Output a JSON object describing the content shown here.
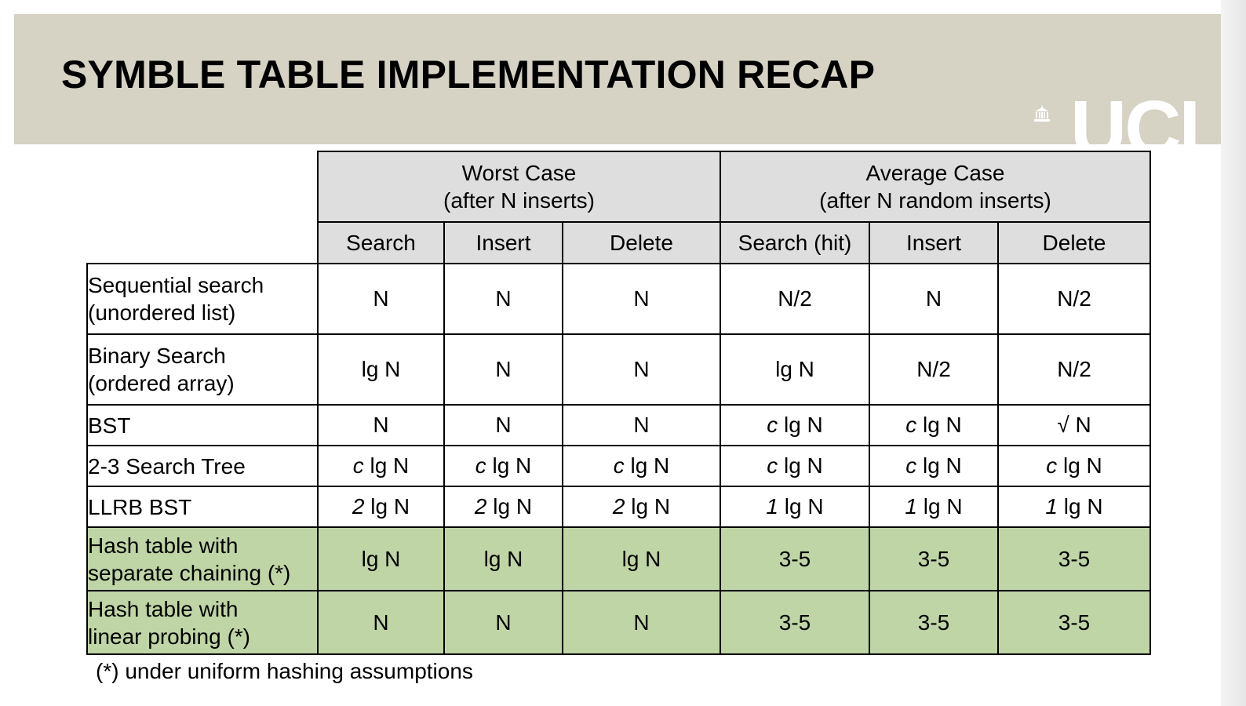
{
  "slide": {
    "title": "SYMBLE TABLE IMPLEMENTATION RECAP",
    "logo_text": "UCL",
    "logo_icon": "ucl-portico-icon"
  },
  "table": {
    "groups": [
      {
        "line1": "Worst Case",
        "line2": "(after N inserts)"
      },
      {
        "line1": "Average Case",
        "line2": "(after N random inserts)"
      }
    ],
    "columns": [
      "Search",
      "Insert",
      "Delete",
      "Search (hit)",
      "Insert",
      "Delete"
    ],
    "rows": [
      {
        "label1": "Sequential search",
        "label2": "(unordered list)",
        "cells": [
          "N",
          "N",
          "N",
          "N/2",
          "N",
          "N/2"
        ],
        "highlight": false
      },
      {
        "label1": "Binary Search",
        "label2": "(ordered array)",
        "cells": [
          "lg N",
          "N",
          "N",
          "lg N",
          "N/2",
          "N/2"
        ],
        "highlight": false
      },
      {
        "label1": "BST",
        "label2": "",
        "cells": [
          "N",
          "N",
          "N",
          "c lg N",
          "c lg N",
          "√ N"
        ],
        "highlight": false
      },
      {
        "label1": "2-3 Search Tree",
        "label2": "",
        "cells": [
          "c lg N",
          "c lg N",
          "c lg N",
          "c lg N",
          "c lg N",
          "c lg N"
        ],
        "highlight": false
      },
      {
        "label1": "LLRB BST",
        "label2": "",
        "cells": [
          "2 lg N",
          "2 lg N",
          "2 lg N",
          "1 lg N",
          "1 lg N",
          "1 lg N"
        ],
        "highlight": false
      },
      {
        "label1": "Hash table with",
        "label2": "separate chaining (*)",
        "cells": [
          "lg N",
          "lg N",
          "lg N",
          "3-5",
          "3-5",
          "3-5"
        ],
        "highlight": true
      },
      {
        "label1": "Hash table with",
        "label2": "linear probing (*)",
        "cells": [
          "N",
          "N",
          "N",
          "3-5",
          "3-5",
          "3-5"
        ],
        "highlight": true
      }
    ],
    "highlight_color": "#bfd5a5",
    "header_color": "#dedede"
  },
  "footnote": "(*) under uniform hashing assumptions"
}
